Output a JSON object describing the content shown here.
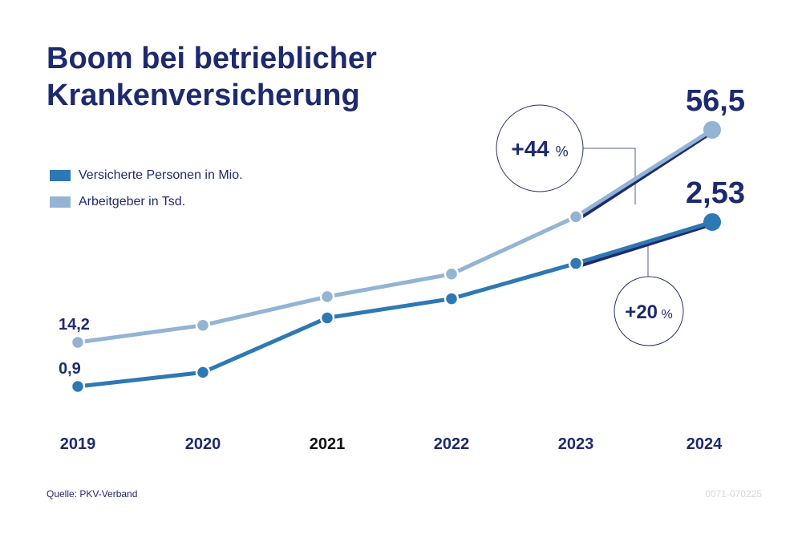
{
  "chart_data": {
    "type": "line",
    "title": "Boom bei betrieblicher Krankenversicherung",
    "categories": [
      "2019",
      "2020",
      "2021",
      "2022",
      "2023",
      "2024"
    ],
    "series": [
      {
        "name": "Versicherte Personen in Mio.",
        "values": [
          0.9,
          1.04,
          1.58,
          1.77,
          2.12,
          2.53
        ],
        "color": "#2e78b4",
        "first_label": "0,9",
        "last_label": "2,53",
        "change_label": "+20",
        "change_unit": "%"
      },
      {
        "name": "Arbeitgeber in Tsd.",
        "values": [
          14.2,
          17.6,
          23.3,
          27.8,
          39.2,
          56.5
        ],
        "color": "#93b4d2",
        "first_label": "14,2",
        "last_label": "56,5",
        "change_label": "+44",
        "change_unit": "%"
      }
    ],
    "legend": "top-left",
    "grid": false,
    "source": "Quelle: PKV-Verband",
    "code": "0071-070225",
    "accent": "#1e2a6e"
  }
}
